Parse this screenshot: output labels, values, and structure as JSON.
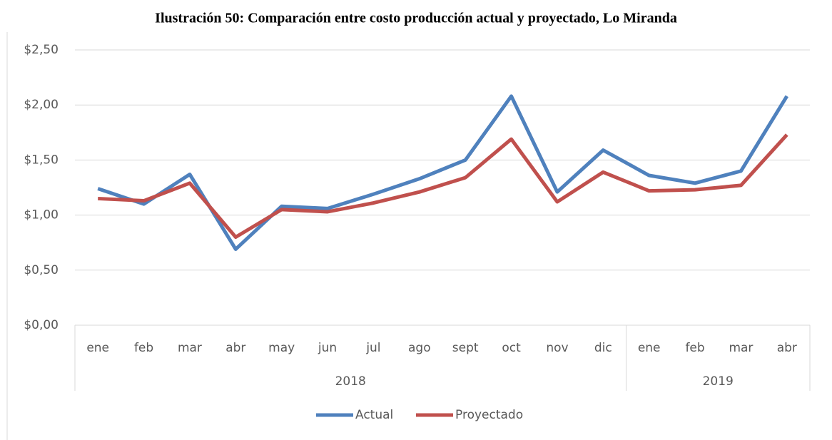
{
  "chart_data": {
    "type": "line",
    "title": "Ilustración 50: Comparación entre costo producción actual y proyectado, Lo Miranda",
    "category_groups": [
      {
        "label": "2018",
        "categories": [
          "ene",
          "feb",
          "mar",
          "abr",
          "may",
          "jun",
          "jul",
          "ago",
          "sept",
          "oct",
          "nov",
          "dic"
        ]
      },
      {
        "label": "2019",
        "categories": [
          "ene",
          "feb",
          "mar",
          "abr"
        ]
      }
    ],
    "series": [
      {
        "name": "Actual",
        "color": "#4f81bd",
        "values": [
          1.24,
          1.1,
          1.37,
          0.69,
          1.08,
          1.06,
          1.19,
          1.33,
          1.5,
          2.08,
          1.21,
          1.59,
          1.36,
          1.29,
          1.4,
          2.08
        ]
      },
      {
        "name": "Proyectado",
        "color": "#c0504d",
        "values": [
          1.15,
          1.13,
          1.29,
          0.8,
          1.05,
          1.03,
          1.11,
          1.21,
          1.34,
          1.69,
          1.12,
          1.39,
          1.22,
          1.23,
          1.27,
          1.73
        ]
      }
    ],
    "ylim": [
      0,
      2.5
    ],
    "yticks": [
      {
        "value": 0,
        "label": "$0,00"
      },
      {
        "value": 0.5,
        "label": "$0,50"
      },
      {
        "value": 1,
        "label": "$1,00"
      },
      {
        "value": 1.5,
        "label": "$1,50"
      },
      {
        "value": 2,
        "label": "$2,00"
      },
      {
        "value": 2.5,
        "label": "$2,50"
      }
    ],
    "grid": true,
    "legend": "bottom"
  }
}
